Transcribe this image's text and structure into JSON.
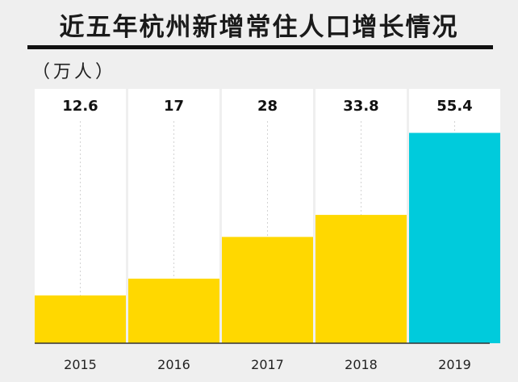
{
  "chart_data": {
    "type": "bar",
    "title": "近五年杭州新增常住人口增长情况",
    "unit_label": "（万人）",
    "categories": [
      "2015",
      "2016",
      "2017",
      "2018",
      "2019"
    ],
    "values": [
      12.6,
      17,
      28,
      33.8,
      55.4
    ],
    "value_labels": [
      "12.6",
      "17",
      "28",
      "33.8",
      "55.4"
    ],
    "ylim": [
      0,
      67
    ],
    "grid": false,
    "colors": {
      "default_bar": "#ffd800",
      "highlight_bar": "#00cbdc",
      "column_background": "#ffffff",
      "page_background": "#efefef"
    },
    "highlight_index": 4
  }
}
